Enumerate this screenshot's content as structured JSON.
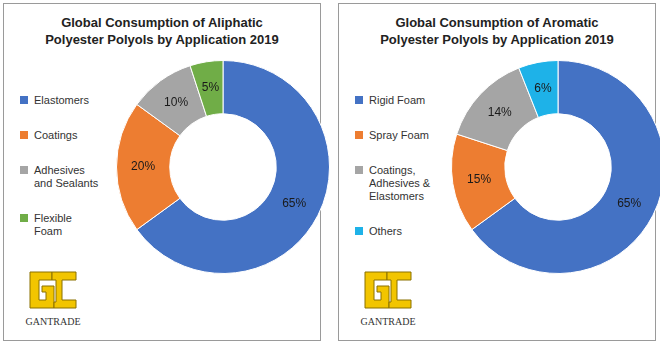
{
  "chart_data": [
    {
      "type": "doughnut",
      "title": [
        "Global Consumption of Aliphatic",
        "Polyester Polyols by Application 2019"
      ],
      "categories": [
        "Elastomers",
        "Coatings",
        "Adhesives and Sealants",
        "Flexible Foam"
      ],
      "values": [
        65,
        20,
        10,
        5
      ],
      "value_labels": [
        "65%",
        "20%",
        "10%",
        "5%"
      ],
      "colors": [
        "#4472c4",
        "#ed7d31",
        "#a5a5a5",
        "#70ad47"
      ],
      "legend": "left",
      "data_labels": true,
      "annotation": "GANTRADE"
    },
    {
      "type": "doughnut",
      "title": [
        "Global Consumption of Aromatic",
        "Polyester Polyols by Application 2019"
      ],
      "categories": [
        "Rigid Foam",
        "Spray Foam",
        "Coatings, Adhesives & Elastomers",
        "Others"
      ],
      "values": [
        65,
        15,
        14,
        6
      ],
      "value_labels": [
        "65%",
        "15%",
        "14%",
        "6%"
      ],
      "colors": [
        "#4472c4",
        "#ed7d31",
        "#a5a5a5",
        "#1eb2e8"
      ],
      "legend": "left",
      "data_labels": true,
      "annotation": "GANTRADE"
    }
  ]
}
